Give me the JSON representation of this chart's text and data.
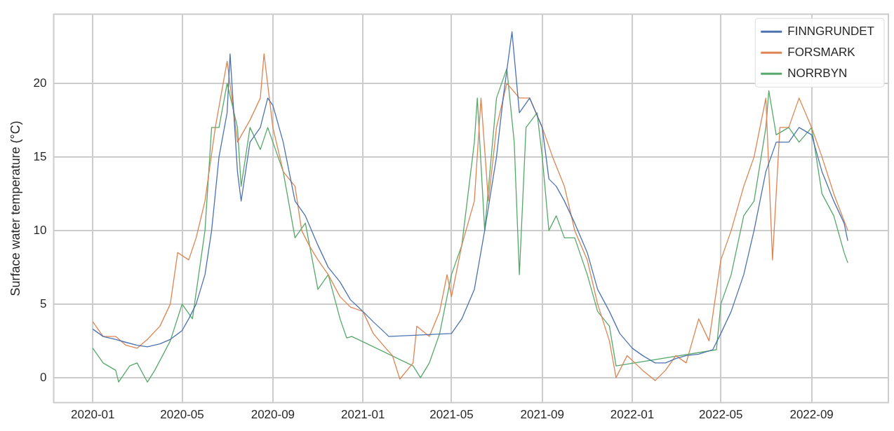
{
  "chart_data": {
    "type": "line",
    "ylabel": "Surface water temperature (°C)",
    "xlim": [
      "2019-11-09",
      "2022-12-14"
    ],
    "xticks": [
      "2020-01",
      "2020-05",
      "2020-09",
      "2021-01",
      "2021-05",
      "2021-09",
      "2022-01",
      "2022-05",
      "2022-09"
    ],
    "ylim": [
      -1.7,
      24.7
    ],
    "yticks": [
      0,
      5,
      10,
      15,
      20
    ],
    "grid": true,
    "legend": "top right",
    "marker": "none",
    "line_style": "solid",
    "series": [
      {
        "name": "FINNGRUNDET",
        "color": "#4c72b0",
        "x": [
          "2020-01-01",
          "2020-01-15",
          "2020-02-01",
          "2020-02-15",
          "2020-03-01",
          "2020-03-15",
          "2020-04-01",
          "2020-04-15",
          "2020-05-01",
          "2020-05-10",
          "2020-05-20",
          "2020-06-01",
          "2020-06-10",
          "2020-06-20",
          "2020-07-01",
          "2020-07-05",
          "2020-07-15",
          "2020-07-20",
          "2020-08-01",
          "2020-08-15",
          "2020-08-25",
          "2020-09-01",
          "2020-09-15",
          "2020-10-01",
          "2020-10-15",
          "2020-11-01",
          "2020-11-15",
          "2020-12-01",
          "2020-12-15",
          "2021-01-01",
          "2021-01-15",
          "2021-02-01",
          "2021-02-05",
          "2021-05-01",
          "2021-05-15",
          "2021-06-01",
          "2021-06-15",
          "2021-07-01",
          "2021-07-10",
          "2021-07-22",
          "2021-08-01",
          "2021-08-15",
          "2021-09-01",
          "2021-09-10",
          "2021-09-20",
          "2021-10-01",
          "2021-10-15",
          "2021-11-01",
          "2021-11-15",
          "2021-12-01",
          "2021-12-15",
          "2022-01-01",
          "2022-01-15",
          "2022-02-01",
          "2022-02-15",
          "2022-03-01",
          "2022-03-15",
          "2022-04-01",
          "2022-04-20",
          "2022-05-01",
          "2022-05-15",
          "2022-06-01",
          "2022-06-15",
          "2022-07-01",
          "2022-07-15",
          "2022-08-01",
          "2022-08-15",
          "2022-09-01",
          "2022-09-15",
          "2022-10-01",
          "2022-10-15",
          "2022-10-20"
        ],
        "values": [
          3.3,
          2.8,
          2.6,
          2.4,
          2.2,
          2.1,
          2.3,
          2.6,
          3.2,
          4.0,
          5,
          7,
          10,
          15,
          18,
          22,
          14,
          12,
          16,
          17,
          19,
          18.5,
          16,
          12,
          11,
          9,
          7.5,
          6.5,
          5.3,
          4.5,
          3.8,
          3.0,
          2.8,
          3.0,
          4,
          6,
          10,
          15,
          19,
          23.5,
          18,
          19,
          17,
          13.5,
          13,
          12,
          10.5,
          8.5,
          6,
          4.5,
          3,
          2,
          1.5,
          1.0,
          1.0,
          1.3,
          1.5,
          1.6,
          1.9,
          3,
          4.5,
          7,
          10,
          14,
          16,
          16,
          17,
          16.5,
          14,
          12,
          10.5,
          9.3
        ]
      },
      {
        "name": "FORSMARK",
        "color": "#dd8452",
        "x": [
          "2020-01-01",
          "2020-01-15",
          "2020-02-01",
          "2020-02-15",
          "2020-03-01",
          "2020-03-15",
          "2020-04-01",
          "2020-04-15",
          "2020-04-25",
          "2020-05-10",
          "2020-05-20",
          "2020-06-01",
          "2020-06-15",
          "2020-07-01",
          "2020-07-15",
          "2020-08-01",
          "2020-08-15",
          "2020-08-20",
          "2020-09-01",
          "2020-09-15",
          "2020-10-01",
          "2020-10-10",
          "2020-10-20",
          "2020-11-01",
          "2020-11-15",
          "2020-12-01",
          "2020-12-15",
          "2021-01-01",
          "2021-01-15",
          "2021-02-01",
          "2021-02-10",
          "2021-02-20",
          "2021-03-10",
          "2021-03-15",
          "2021-04-01",
          "2021-04-15",
          "2021-04-25",
          "2021-05-01",
          "2021-05-15",
          "2021-06-01",
          "2021-06-10",
          "2021-06-20",
          "2021-07-01",
          "2021-07-15",
          "2021-08-01",
          "2021-08-15",
          "2021-09-01",
          "2021-09-15",
          "2021-10-01",
          "2021-10-15",
          "2021-11-01",
          "2021-11-15",
          "2021-12-01",
          "2021-12-10",
          "2021-12-25",
          "2022-01-15",
          "2022-02-01",
          "2022-02-15",
          "2022-03-01",
          "2022-03-15",
          "2022-04-01",
          "2022-04-15",
          "2022-05-01",
          "2022-05-15",
          "2022-06-01",
          "2022-06-15",
          "2022-07-01",
          "2022-07-10",
          "2022-07-20",
          "2022-08-01",
          "2022-08-15",
          "2022-09-01",
          "2022-09-15",
          "2022-10-01",
          "2022-10-20"
        ],
        "values": [
          3.8,
          2.8,
          2.8,
          2.2,
          2.0,
          2.6,
          3.5,
          5,
          8.5,
          8,
          9.5,
          12,
          17,
          21.5,
          16,
          17.5,
          19,
          22,
          17,
          14,
          13,
          10,
          9,
          8,
          7,
          5.5,
          4.8,
          4.5,
          3,
          2,
          1.5,
          -0.1,
          1.0,
          3.5,
          2.8,
          4.5,
          7,
          5.5,
          9,
          12,
          19,
          12,
          17,
          20,
          19,
          19,
          17,
          15,
          13,
          10,
          8,
          5,
          2.5,
          0,
          1.5,
          0.5,
          -0.2,
          0.5,
          1.5,
          1.0,
          4,
          2.5,
          8,
          10,
          13,
          15,
          19,
          8,
          17,
          17,
          19,
          17,
          15,
          12.5,
          10
        ]
      },
      {
        "name": "NORRBYN",
        "color": "#55a868",
        "x": [
          "2020-01-01",
          "2020-01-15",
          "2020-02-01",
          "2020-02-05",
          "2020-02-20",
          "2020-03-01",
          "2020-03-15",
          "2020-03-25",
          "2020-04-15",
          "2020-05-01",
          "2020-05-15",
          "2020-06-01",
          "2020-06-10",
          "2020-06-20",
          "2020-07-01",
          "2020-07-15",
          "2020-07-20",
          "2020-08-01",
          "2020-08-15",
          "2020-08-25",
          "2020-09-01",
          "2020-09-15",
          "2020-10-01",
          "2020-10-15",
          "2020-11-01",
          "2020-11-15",
          "2020-12-01",
          "2020-12-10",
          "2020-12-17",
          "2021-03-10",
          "2021-03-20",
          "2021-04-01",
          "2021-04-15",
          "2021-05-01",
          "2021-05-15",
          "2021-06-01",
          "2021-06-05",
          "2021-06-15",
          "2021-07-01",
          "2021-07-15",
          "2021-07-25",
          "2021-08-01",
          "2021-08-10",
          "2021-08-25",
          "2021-09-01",
          "2021-09-10",
          "2021-09-20",
          "2021-10-01",
          "2021-10-15",
          "2021-11-01",
          "2021-11-15",
          "2021-12-01",
          "2021-12-10",
          "2022-04-25",
          "2022-05-01",
          "2022-05-15",
          "2022-06-01",
          "2022-06-15",
          "2022-07-01",
          "2022-07-05",
          "2022-07-15",
          "2022-08-01",
          "2022-08-15",
          "2022-09-01",
          "2022-09-15",
          "2022-10-01",
          "2022-10-15",
          "2022-10-20"
        ],
        "values": [
          2.0,
          1.0,
          0.5,
          -0.3,
          0.8,
          1.0,
          -0.3,
          0.5,
          2.5,
          5,
          4,
          10,
          17,
          17,
          20,
          17,
          13,
          17,
          15.5,
          17,
          16,
          14,
          9.5,
          10.5,
          6,
          7,
          4,
          2.7,
          2.8,
          0.8,
          0.0,
          1.0,
          3,
          7,
          9,
          16,
          19,
          10,
          19,
          21,
          16,
          7,
          17,
          18,
          15,
          10,
          11,
          9.5,
          9.5,
          7,
          4.5,
          3.5,
          0.8,
          1.9,
          5,
          7,
          11,
          12,
          17,
          19.5,
          16.5,
          17,
          16,
          17,
          12.5,
          11,
          8.5,
          7.8
        ]
      }
    ]
  }
}
